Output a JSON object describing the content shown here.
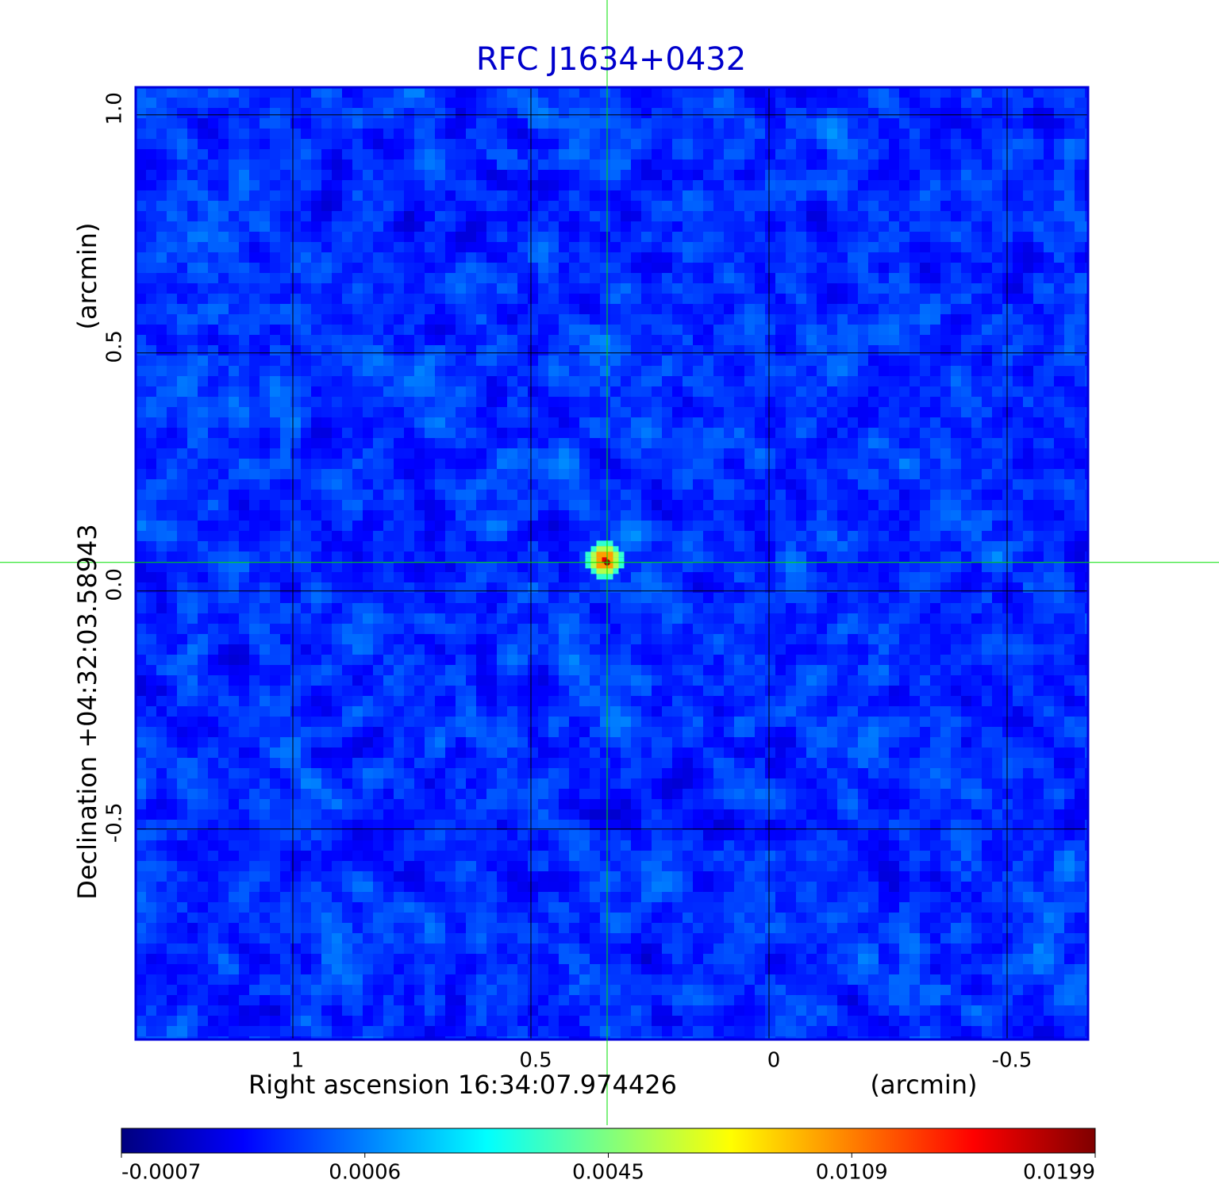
{
  "chart_data": {
    "type": "image",
    "title": "RFC J1634+0432",
    "xlabel": "Right ascension  16:34:07.974426",
    "xunit": "(arcmin)",
    "ylabel": "Declination  +04:32:03.58943",
    "yunit": "(arcmin)",
    "xlim": [
      1.33,
      -0.67
    ],
    "xticks": [
      1.0,
      0.5,
      0.0,
      -0.5
    ],
    "ylim": [
      -0.942,
      1.058
    ],
    "yticks": [
      {
        "value": 1.0,
        "label": "1.0"
      },
      0.5,
      {
        "value": 0.0,
        "label": "0.0"
      },
      -0.5
    ],
    "grid": true,
    "peak": {
      "x": 0.34,
      "y": 0.06
    },
    "colormap": [
      "#00007f",
      "#0000ff",
      "#007fff",
      "#00ffff",
      "#7fff7f",
      "#ffff00",
      "#ff7f00",
      "#ff0000",
      "#7f0000"
    ],
    "colorbar_ticks": [
      -0.0007,
      0.0006,
      0.0045,
      0.0109,
      0.0199
    ]
  }
}
